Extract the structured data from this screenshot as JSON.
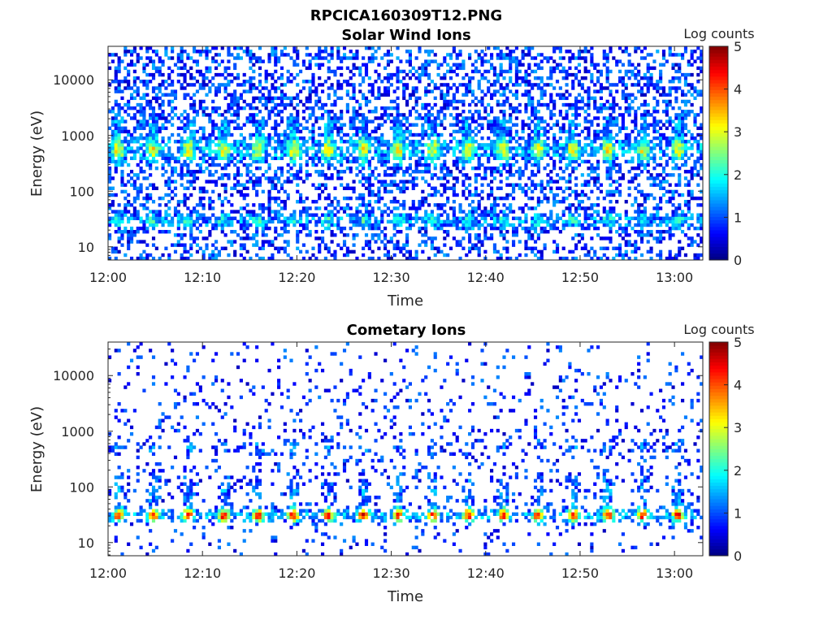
{
  "figure": {
    "title": "RPCICA160309T12.PNG"
  },
  "colorbar": {
    "label": "Log counts",
    "ticks": [
      "0",
      "1",
      "2",
      "3",
      "4",
      "5"
    ],
    "range": [
      0,
      5
    ],
    "colormap": "jet"
  },
  "chart_data": [
    {
      "type": "heatmap",
      "title": "Solar Wind Ions",
      "xlabel": "Time",
      "ylabel": "Energy (eV)",
      "xlim": [
        "12:00",
        "13:03"
      ],
      "ylim": [
        5.8,
        40000
      ],
      "yscale": "log",
      "xticks": [
        "12:00",
        "12:10",
        "12:20",
        "12:30",
        "12:40",
        "12:50",
        "13:00"
      ],
      "yticks": [
        "10",
        "100",
        "1000",
        "10000"
      ],
      "ytick_values": [
        10,
        100,
        1000,
        10000
      ],
      "colorbar_label": "Log counts",
      "clim": [
        0,
        5
      ],
      "features": {
        "low_band_eV": [
          20,
          45
        ],
        "peak_band_eV": [
          350,
          800
        ],
        "secondary_band_eV": [
          1000,
          2500
        ],
        "background_eV": [
          5.8,
          40000
        ]
      }
    },
    {
      "type": "heatmap",
      "title": "Cometary Ions",
      "xlabel": "Time",
      "ylabel": "Energy (eV)",
      "xlim": [
        "12:00",
        "13:03"
      ],
      "ylim": [
        5.8,
        40000
      ],
      "yscale": "log",
      "xticks": [
        "12:00",
        "12:10",
        "12:20",
        "12:30",
        "12:40",
        "12:50",
        "13:00"
      ],
      "yticks": [
        "10",
        "100",
        "1000",
        "10000"
      ],
      "ytick_values": [
        10,
        100,
        1000,
        10000
      ],
      "colorbar_label": "Log counts",
      "clim": [
        0,
        5
      ],
      "features": {
        "main_band_eV": [
          22,
          45
        ],
        "plume_band_eV": [
          45,
          200
        ],
        "upper_band_eV": [
          400,
          650
        ],
        "background_eV": [
          5.8,
          40000
        ]
      }
    }
  ]
}
